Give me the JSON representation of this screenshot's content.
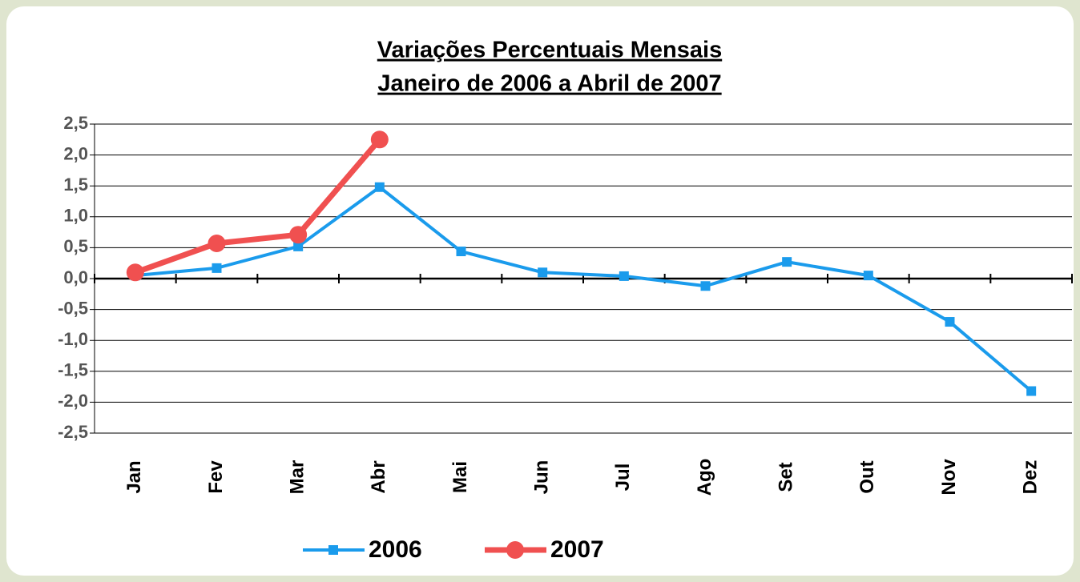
{
  "chart_data": {
    "type": "line",
    "title": [
      "Variações Percentuais Mensais",
      "Janeiro de 2006 a Abril de 2007"
    ],
    "categories": [
      "Jan",
      "Fev",
      "Mar",
      "Abr",
      "Mai",
      "Jun",
      "Jul",
      "Ago",
      "Set",
      "Out",
      "Nov",
      "Dez"
    ],
    "series": [
      {
        "name": "2006",
        "color": "#1a9bec",
        "values": [
          0.05,
          0.17,
          0.52,
          1.48,
          0.44,
          0.1,
          0.04,
          -0.12,
          0.27,
          0.05,
          -0.7,
          -1.82
        ]
      },
      {
        "name": "2007",
        "color": "#f05050",
        "values": [
          0.1,
          0.57,
          0.71,
          2.25,
          null,
          null,
          null,
          null,
          null,
          null,
          null,
          null
        ]
      }
    ],
    "ylim": [
      -2.5,
      2.5
    ],
    "yticks": [
      {
        "value": -2.5,
        "label": "-2,5"
      },
      {
        "value": -2,
        "label": "-2,0"
      },
      {
        "value": -1.5,
        "label": "-1,5"
      },
      {
        "value": -1,
        "label": "-1,0"
      },
      {
        "value": -0.5,
        "label": "-0,5"
      },
      {
        "value": 0,
        "label": "0,0"
      },
      {
        "value": 0.5,
        "label": "0,5"
      },
      {
        "value": 1,
        "label": "1,0"
      },
      {
        "value": 1.5,
        "label": "1,5"
      },
      {
        "value": 2,
        "label": "2,0"
      },
      {
        "value": 2.5,
        "label": "2,5"
      }
    ],
    "grid": true
  }
}
